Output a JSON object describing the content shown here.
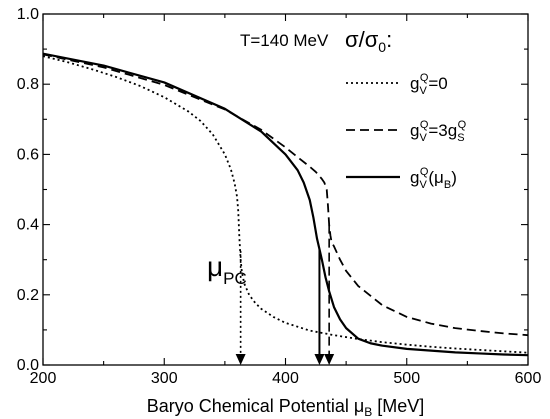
{
  "chart_data": {
    "type": "line",
    "title": "",
    "xlabel": "Baryo Chemical Potential",
    "xlabel_symbol": "μ",
    "xlabel_subscript": "B",
    "xlabel_unit": "[MeV]",
    "ylabel": "",
    "xlim": [
      200,
      600
    ],
    "ylim": [
      0.0,
      1.0
    ],
    "x_ticks": [
      200,
      300,
      400,
      500,
      600
    ],
    "x_tick_labels": [
      "200",
      "300",
      "400",
      "500",
      "600"
    ],
    "y_ticks": [
      0.0,
      0.2,
      0.4,
      0.6,
      0.8,
      1.0
    ],
    "y_tick_labels": [
      "0.0",
      "0.2",
      "0.4",
      "0.6",
      "0.8",
      "1.0"
    ],
    "grid": false,
    "legend_position": "right",
    "annotations": {
      "temperature": "T=140 MeV",
      "quantity_main": "σ/σ",
      "quantity_sub": "0",
      "quantity_colon": ":",
      "mu_pc_main": "μ",
      "mu_pc_sub": "PC"
    },
    "series": [
      {
        "name": "g_V^Q=0",
        "label_parts": [
          {
            "text": "g",
            "style": "normal"
          },
          {
            "text": "V",
            "style": "sub"
          },
          {
            "text": "Q",
            "style": "sup"
          },
          {
            "text": "=0",
            "style": "normal"
          }
        ],
        "style": "dotted",
        "x": [
          200,
          220,
          240,
          260,
          280,
          300,
          320,
          330,
          340,
          350,
          355,
          358,
          360,
          361,
          362,
          363,
          364,
          366,
          370,
          375,
          380,
          390,
          400,
          420,
          440,
          460,
          480,
          500,
          520,
          540,
          560,
          580,
          600
        ],
        "y": [
          0.88,
          0.863,
          0.843,
          0.821,
          0.795,
          0.763,
          0.722,
          0.695,
          0.657,
          0.6,
          0.557,
          0.518,
          0.48,
          0.44,
          0.36,
          0.3,
          0.265,
          0.232,
          0.2,
          0.177,
          0.16,
          0.137,
          0.12,
          0.098,
          0.085,
          0.074,
          0.065,
          0.058,
          0.052,
          0.047,
          0.043,
          0.039,
          0.035
        ]
      },
      {
        "name": "g_V^Q=3g_S^Q",
        "label_parts": [
          {
            "text": "g",
            "style": "normal"
          },
          {
            "text": "V",
            "style": "sub"
          },
          {
            "text": "Q",
            "style": "sup"
          },
          {
            "text": "=3g",
            "style": "normal"
          },
          {
            "text": "S",
            "style": "sub"
          },
          {
            "text": "Q",
            "style": "sup"
          }
        ],
        "style": "dashed",
        "x": [
          200,
          250,
          300,
          350,
          380,
          400,
          410,
          420,
          425,
          430,
          432,
          434,
          435,
          436,
          437,
          438,
          440,
          445,
          450,
          460,
          480,
          500,
          520,
          540,
          560,
          580,
          600
        ],
        "y": [
          0.885,
          0.848,
          0.798,
          0.728,
          0.67,
          0.62,
          0.592,
          0.565,
          0.55,
          0.53,
          0.52,
          0.5,
          0.455,
          0.4,
          0.37,
          0.35,
          0.338,
          0.3,
          0.268,
          0.225,
          0.17,
          0.137,
          0.118,
          0.105,
          0.097,
          0.09,
          0.085
        ]
      },
      {
        "name": "g_V^Q(μ_B)",
        "label_parts": [
          {
            "text": "g",
            "style": "normal"
          },
          {
            "text": "V",
            "style": "sub"
          },
          {
            "text": "Q",
            "style": "sup"
          },
          {
            "text": "(μ",
            "style": "normal"
          },
          {
            "text": "B",
            "style": "sub"
          },
          {
            "text": ")",
            "style": "normal"
          }
        ],
        "style": "solid",
        "x": [
          200,
          250,
          300,
          350,
          380,
          400,
          410,
          415,
          420,
          423,
          426,
          428,
          430,
          433,
          436,
          440,
          445,
          450,
          460,
          470,
          480,
          500,
          520,
          540,
          560,
          580,
          600
        ],
        "y": [
          0.887,
          0.853,
          0.805,
          0.73,
          0.665,
          0.6,
          0.555,
          0.52,
          0.47,
          0.42,
          0.36,
          0.33,
          0.3,
          0.25,
          0.21,
          0.165,
          0.13,
          0.105,
          0.075,
          0.062,
          0.055,
          0.046,
          0.041,
          0.036,
          0.033,
          0.03,
          0.028
        ]
      }
    ],
    "arrows": [
      {
        "from": [
          363,
          0.325
        ],
        "to": [
          363,
          0.0
        ],
        "style": "dotted"
      },
      {
        "from": [
          428,
          0.33
        ],
        "to": [
          428,
          0.0
        ],
        "style": "solid"
      },
      {
        "from": [
          436,
          0.4
        ],
        "to": [
          436,
          0.0
        ],
        "style": "dashed"
      }
    ]
  }
}
